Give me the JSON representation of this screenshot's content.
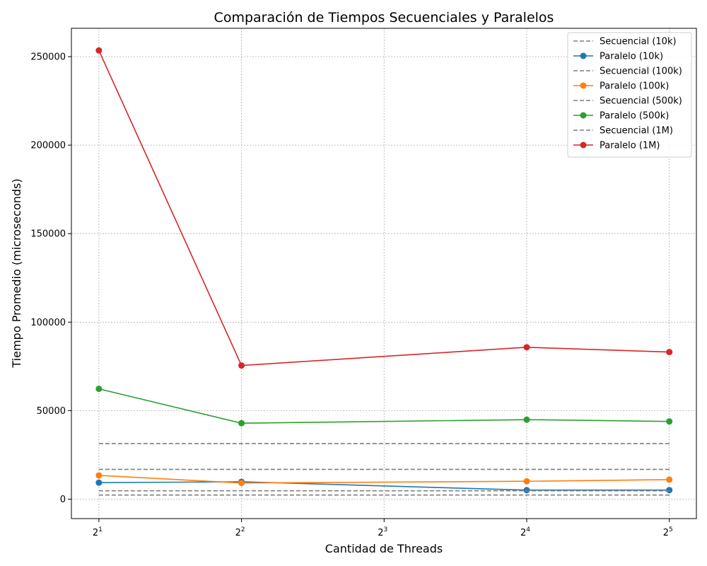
{
  "chart_data": {
    "type": "line",
    "title": "Comparación de Tiempos Secuenciales y Paralelos",
    "xlabel": "Cantidad de Threads",
    "ylabel": "Tiempo Promedio (microseconds)",
    "x_scale": "log2",
    "x": [
      2,
      4,
      16,
      32
    ],
    "xticks": [
      {
        "value": 2,
        "base": "2",
        "exp": "1"
      },
      {
        "value": 4,
        "base": "2",
        "exp": "2"
      },
      {
        "value": 8,
        "base": "2",
        "exp": "3"
      },
      {
        "value": 16,
        "base": "2",
        "exp": "4"
      },
      {
        "value": 32,
        "base": "2",
        "exp": "5"
      }
    ],
    "yticks": [
      0,
      50000,
      100000,
      150000,
      200000,
      250000
    ],
    "xlim": [
      1.75,
      36.5
    ],
    "ylim": [
      -11000,
      266000
    ],
    "grid": true,
    "legend_position": "top-right",
    "series": [
      {
        "name": "Secuencial (10k)",
        "style": "dashed",
        "color": "#7f7f7f",
        "values": [
          2300,
          2300,
          2300,
          2300
        ]
      },
      {
        "name": "Paralelo (10k)",
        "style": "solid-marker",
        "color": "#1f77b4",
        "values": [
          9300,
          9800,
          5100,
          5100
        ]
      },
      {
        "name": "Secuencial (100k)",
        "style": "dashed",
        "color": "#7f7f7f",
        "values": [
          4700,
          4700,
          4700,
          4700
        ]
      },
      {
        "name": "Paralelo (100k)",
        "style": "solid-marker",
        "color": "#ff7f0e",
        "values": [
          13400,
          9100,
          10100,
          11000
        ]
      },
      {
        "name": "Secuencial (500k)",
        "style": "dashed",
        "color": "#7f7f7f",
        "values": [
          16800,
          16800,
          16800,
          16800
        ]
      },
      {
        "name": "Paralelo (500k)",
        "style": "solid-marker",
        "color": "#2ca02c",
        "values": [
          62300,
          42900,
          44900,
          43900
        ]
      },
      {
        "name": "Secuencial (1M)",
        "style": "dashed",
        "color": "#7f7f7f",
        "values": [
          31400,
          31400,
          31400,
          31400
        ]
      },
      {
        "name": "Paralelo (1M)",
        "style": "solid-marker",
        "color": "#d62728",
        "values": [
          253500,
          75500,
          85800,
          83100
        ]
      }
    ]
  }
}
